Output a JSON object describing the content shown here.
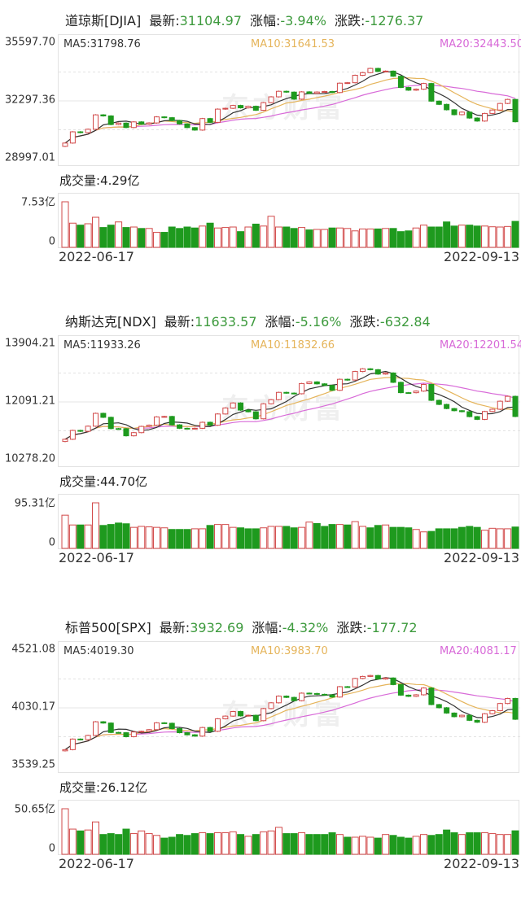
{
  "colors": {
    "up": "#d24a4a",
    "down": "#1e9a1e",
    "ma5": "#333333",
    "ma10": "#e5b45a",
    "ma20": "#d86ad8",
    "value": "#3d9a3d"
  },
  "labels": {
    "latest": "最新:",
    "pct": "涨幅:",
    "chg": "涨跌:",
    "volume": "成交量:",
    "watermark": "东方财富"
  },
  "chart_data": [
    {
      "type": "candlestick",
      "name": "道琼斯[DJIA]",
      "latest": "31104.97",
      "pct": "-3.94%",
      "chg": "-1276.37",
      "ylim": [
        28997.01,
        35597.7
      ],
      "yticks": [
        "35597.70",
        "32297.36",
        "28997.01"
      ],
      "ma": {
        "ma5": "MA5:31798.76",
        "ma10": "MA10:31641.53",
        "ma20": "MA20:32443.50"
      },
      "volume_label": "4.29亿",
      "volume_max": "7.53亿",
      "volume_zero": "0",
      "volume_max_value": 7.53,
      "date_start": "2022-06-17",
      "date_end": "2022-09-13",
      "first_open": 29700,
      "close": [
        29888,
        30530,
        30483,
        30677,
        31500,
        31438,
        30946,
        31029,
        30775,
        31097,
        30967,
        31037,
        31384,
        31338,
        31173,
        30981,
        30772,
        30630,
        31288,
        31072,
        31827,
        31874,
        32036,
        31899,
        31990,
        31761,
        32197,
        32529,
        32845,
        32798,
        32396,
        32812,
        32726,
        32803,
        32832,
        32774,
        33309,
        33336,
        33761,
        33912,
        34152,
        33980,
        33999,
        33706,
        33063,
        32909,
        32969,
        33291,
        32283,
        32098,
        31790,
        31510,
        31656,
        31318,
        31145,
        31581,
        31775,
        32151,
        32381,
        31105
      ],
      "volume": [
        7.53,
        4.0,
        3.67,
        3.9,
        4.97,
        3.28,
        3.67,
        4.2,
        3.28,
        3.36,
        3.12,
        3.12,
        2.48,
        2.48,
        3.36,
        3.12,
        3.36,
        3.2,
        3.52,
        4.0,
        3.2,
        3.28,
        3.36,
        2.6,
        3.36,
        3.84,
        3.52,
        5.13,
        3.36,
        3.36,
        3.12,
        3.28,
        2.88,
        2.96,
        2.96,
        3.2,
        3.2,
        3.12,
        2.72,
        3.04,
        3.04,
        3.04,
        3.12,
        3.12,
        2.6,
        2.72,
        3.2,
        3.67,
        3.36,
        3.36,
        4.2,
        3.52,
        3.67,
        3.67,
        3.52,
        3.52,
        3.4,
        3.36,
        3.45,
        4.29
      ]
    },
    {
      "type": "candlestick",
      "name": "纳斯达克[NDX]",
      "latest": "11633.57",
      "pct": "-5.16%",
      "chg": "-632.84",
      "ylim": [
        10278.2,
        13904.21
      ],
      "yticks": [
        "13904.21",
        "12091.21",
        "10278.20"
      ],
      "ma": {
        "ma5": "MA5:11933.26",
        "ma10": "MA10:11832.66",
        "ma20": "MA20:12201.54"
      },
      "volume_label": "44.70亿",
      "volume_max": "95.31亿",
      "volume_zero": "0",
      "volume_max_value": 95.31,
      "date_start": "2022-06-17",
      "date_end": "2022-09-13",
      "first_open": 10850,
      "close": [
        10919,
        11197,
        11170,
        11330,
        11733,
        11608,
        11254,
        11251,
        11028,
        11128,
        11323,
        11361,
        11621,
        11635,
        11372,
        11264,
        11247,
        11264,
        11452,
        11360,
        11713,
        11902,
        12059,
        11834,
        11782,
        11562,
        12032,
        12162,
        12391,
        12368,
        12348,
        12668,
        12720,
        12658,
        12610,
        12456,
        12802,
        12779,
        13047,
        13131,
        13103,
        12965,
        13000,
        12706,
        12382,
        12381,
        12431,
        12640,
        12141,
        12013,
        11883,
        11816,
        11785,
        11630,
        11544,
        11791,
        11862,
        12113,
        12267,
        11634
      ],
      "volume": [
        69.5,
        49,
        49,
        49,
        95.31,
        48,
        50,
        53,
        51.5,
        44,
        46,
        45,
        44,
        43,
        39.6,
        39.6,
        39.6,
        41,
        41,
        48,
        50,
        50,
        44,
        43,
        41,
        41,
        43,
        46,
        46,
        46,
        43,
        44,
        55,
        52,
        46,
        50,
        50,
        49,
        56,
        46,
        43,
        48,
        49,
        44,
        44,
        43,
        39.6,
        34.5,
        35.5,
        41,
        41,
        41,
        44,
        46,
        44,
        38,
        42,
        41,
        41,
        44.7
      ]
    },
    {
      "type": "candlestick",
      "name": "标普500[SPX]",
      "latest": "3932.69",
      "pct": "-4.32%",
      "chg": "-177.72",
      "ylim": [
        3539.25,
        4521.08
      ],
      "yticks": [
        "4521.08",
        "4030.17",
        "3539.25"
      ],
      "ma": {
        "ma5": "MA5:4019.30",
        "ma10": "MA10:3983.70",
        "ma20": "MA20:4081.17"
      },
      "volume_label": "26.12亿",
      "volume_max": "50.65亿",
      "volume_zero": "0",
      "volume_max_value": 50.65,
      "date_start": "2022-06-17",
      "date_end": "2022-09-13",
      "first_open": 3665,
      "close": [
        3675,
        3765,
        3760,
        3796,
        3912,
        3901,
        3821,
        3819,
        3785,
        3825,
        3831,
        3845,
        3903,
        3899,
        3854,
        3819,
        3801,
        3790,
        3863,
        3831,
        3937,
        3960,
        3999,
        3962,
        3967,
        3921,
        4024,
        4073,
        4130,
        4119,
        4091,
        4155,
        4152,
        4145,
        4140,
        4122,
        4210,
        4208,
        4280,
        4297,
        4305,
        4275,
        4284,
        4228,
        4138,
        4128,
        4141,
        4199,
        4058,
        4031,
        3986,
        3955,
        3967,
        3924,
        3908,
        3980,
        4006,
        4067,
        4110,
        3933
      ],
      "volume": [
        50.65,
        28,
        26,
        27,
        36,
        22,
        23,
        22,
        28,
        23,
        26,
        23,
        21,
        18,
        19,
        22,
        21,
        23,
        24,
        23,
        24,
        24,
        25,
        22,
        20,
        22,
        25,
        26,
        30,
        23,
        23,
        24,
        22,
        22,
        22,
        24,
        22,
        19,
        19,
        20,
        19,
        18,
        22,
        21,
        19,
        18,
        20,
        22,
        21,
        22,
        27,
        24,
        22,
        24,
        24,
        24,
        23,
        22,
        22,
        26.12
      ]
    }
  ]
}
